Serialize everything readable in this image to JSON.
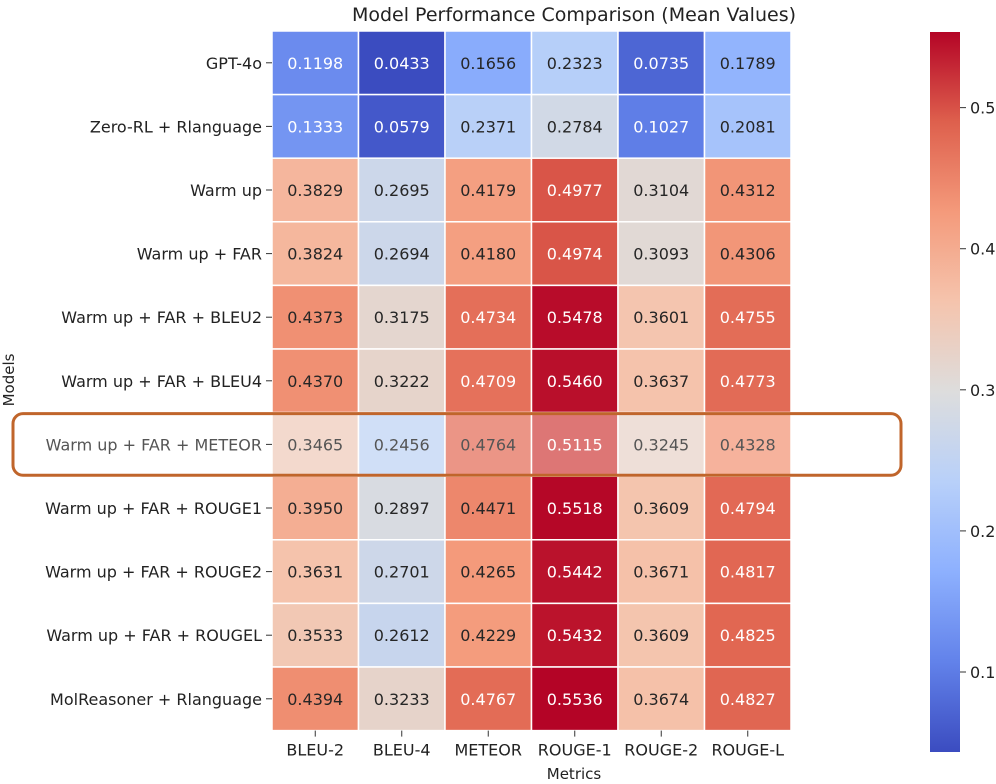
{
  "chart_data": {
    "type": "heatmap",
    "title": "Model Performance Comparison (Mean Values)",
    "xlabel": "Metrics",
    "ylabel": "Models",
    "columns": [
      "BLEU-2",
      "BLEU-4",
      "METEOR",
      "ROUGE-1",
      "ROUGE-2",
      "ROUGE-L"
    ],
    "rows": [
      "GPT-4o",
      "Zero-RL + Rlanguage",
      "Warm up",
      "Warm up + FAR",
      "Warm up + FAR + BLEU2",
      "Warm up + FAR + BLEU4",
      "Warm up + FAR + METEOR",
      "Warm up + FAR + ROUGE1",
      "Warm up + FAR + ROUGE2",
      "Warm up + FAR + ROUGEL",
      "MolReasoner + Rlanguage"
    ],
    "values": [
      [
        0.1198,
        0.0433,
        0.1656,
        0.2323,
        0.0735,
        0.1789
      ],
      [
        0.1333,
        0.0579,
        0.2371,
        0.2784,
        0.1027,
        0.2081
      ],
      [
        0.3829,
        0.2695,
        0.4179,
        0.4977,
        0.3104,
        0.4312
      ],
      [
        0.3824,
        0.2694,
        0.418,
        0.4974,
        0.3093,
        0.4306
      ],
      [
        0.4373,
        0.3175,
        0.4734,
        0.5478,
        0.3601,
        0.4755
      ],
      [
        0.437,
        0.3222,
        0.4709,
        0.546,
        0.3637,
        0.4773
      ],
      [
        0.3465,
        0.2456,
        0.4764,
        0.5115,
        0.3245,
        0.4328
      ],
      [
        0.395,
        0.2897,
        0.4471,
        0.5518,
        0.3609,
        0.4794
      ],
      [
        0.3631,
        0.2701,
        0.4265,
        0.5442,
        0.3671,
        0.4817
      ],
      [
        0.3533,
        0.2612,
        0.4229,
        0.5432,
        0.3609,
        0.4825
      ],
      [
        0.4394,
        0.3233,
        0.4767,
        0.5536,
        0.3674,
        0.4827
      ]
    ],
    "vmin": 0.0433,
    "vmax": 0.5536,
    "colormap": "coolwarm",
    "colorbar_ticks": [
      0.1,
      0.2,
      0.3,
      0.4,
      0.5
    ],
    "colorbar_tick_labels": [
      "0.1",
      "0.2",
      "0.3",
      "0.4",
      "0.5"
    ],
    "highlighted_row": "Warm up + FAR + METEOR",
    "highlight_color": "#c0652b",
    "highlight_fade": 0.72,
    "highlight_label_color": "#555555"
  }
}
